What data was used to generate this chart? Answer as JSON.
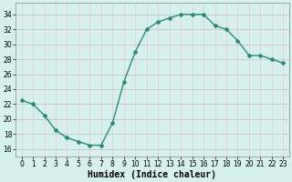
{
  "x": [
    0,
    1,
    2,
    3,
    4,
    5,
    6,
    7,
    8,
    9,
    10,
    11,
    12,
    13,
    14,
    15,
    16,
    17,
    18,
    19,
    20,
    21,
    22,
    23
  ],
  "y": [
    22.5,
    22.0,
    20.5,
    18.5,
    17.5,
    17.0,
    16.5,
    16.5,
    19.5,
    25.0,
    29.0,
    32.0,
    33.0,
    33.5,
    34.0,
    34.0,
    34.0,
    32.5,
    32.0,
    30.5,
    28.5,
    28.5,
    28.0,
    27.5
  ],
  "line_color": "#2d8b72",
  "marker": "D",
  "markersize": 2,
  "bg_color": "#d6f0f0",
  "grid_color_h": "#c8b8b8",
  "grid_color_v": "#e8c8c8",
  "xlabel": "Humidex (Indice chaleur)",
  "xlabel_fontsize": 7,
  "yticks": [
    16,
    18,
    20,
    22,
    24,
    26,
    28,
    30,
    32,
    34
  ],
  "xticks": [
    0,
    1,
    2,
    3,
    4,
    5,
    6,
    7,
    8,
    9,
    10,
    11,
    12,
    13,
    14,
    15,
    16,
    17,
    18,
    19,
    20,
    21,
    22,
    23
  ],
  "ylim": [
    15.0,
    35.5
  ],
  "xlim": [
    -0.5,
    23.5
  ]
}
